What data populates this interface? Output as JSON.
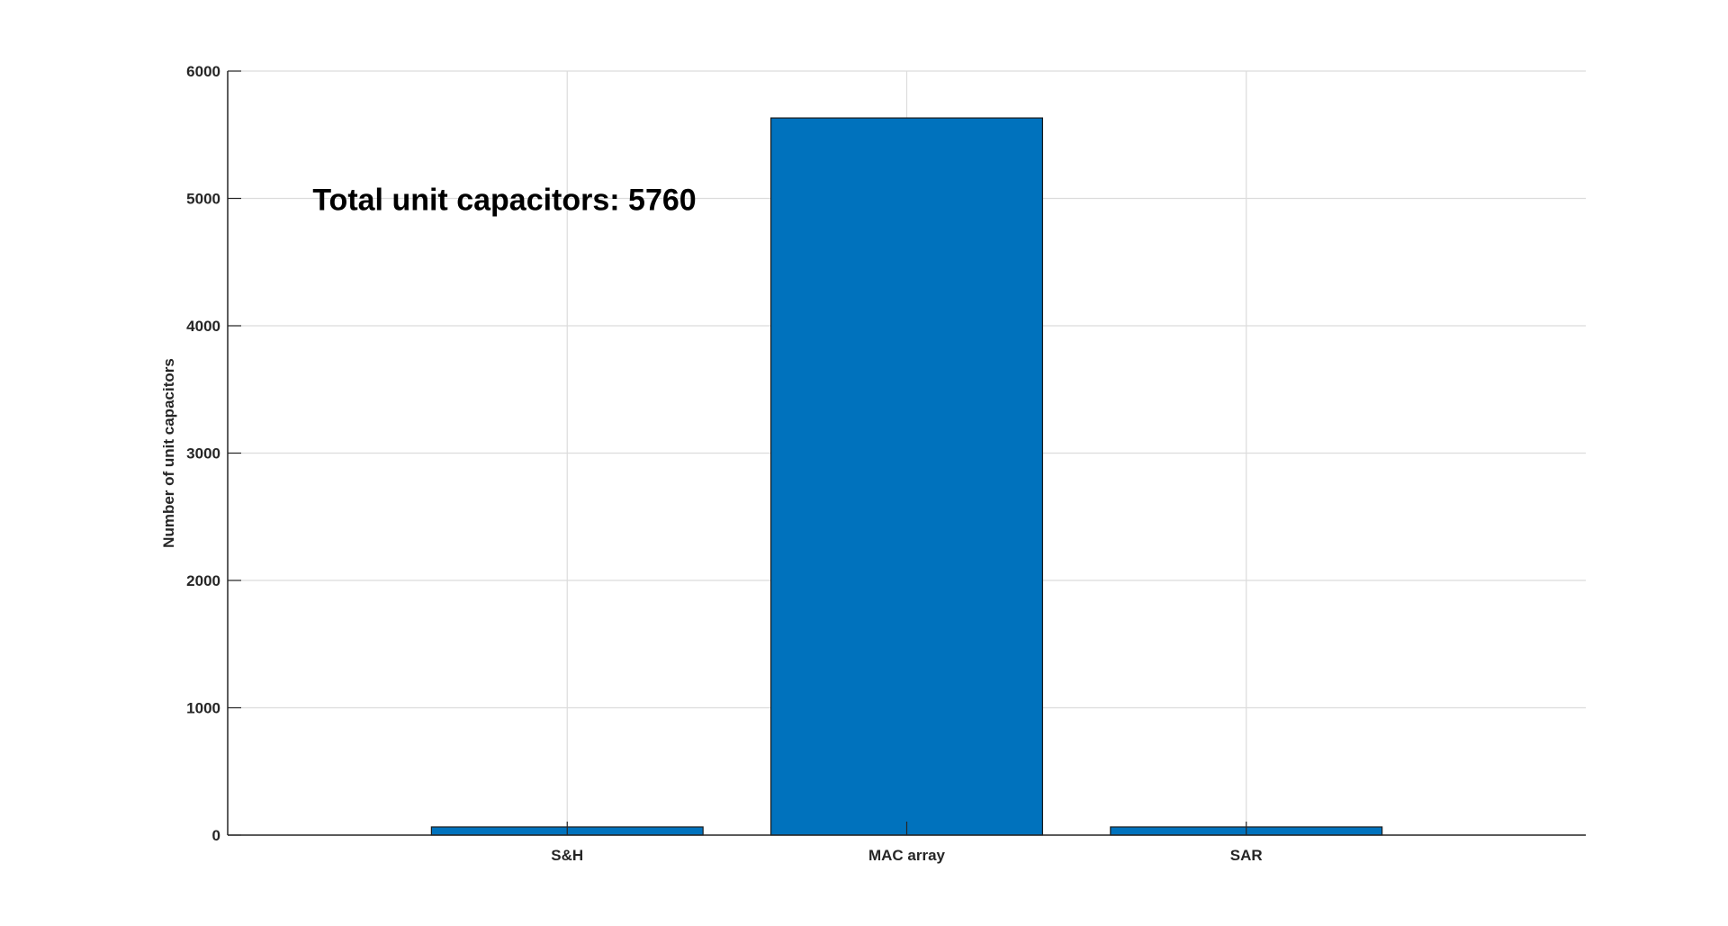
{
  "chart_data": {
    "type": "bar",
    "categories": [
      "S&H",
      "MAC array",
      "SAR"
    ],
    "values": [
      64,
      5632,
      64
    ],
    "xlabel": "",
    "ylabel": "Number of unit capacitors",
    "ylim": [
      0,
      6000
    ],
    "yticks": [
      0,
      1000,
      2000,
      3000,
      4000,
      5000,
      6000
    ],
    "xlim": [
      0,
      4
    ],
    "grid": true,
    "bar_color": "#0072BD",
    "annotation": {
      "text": "Total unit capacitors: 5760",
      "x": 0.25,
      "y": 5000
    }
  }
}
